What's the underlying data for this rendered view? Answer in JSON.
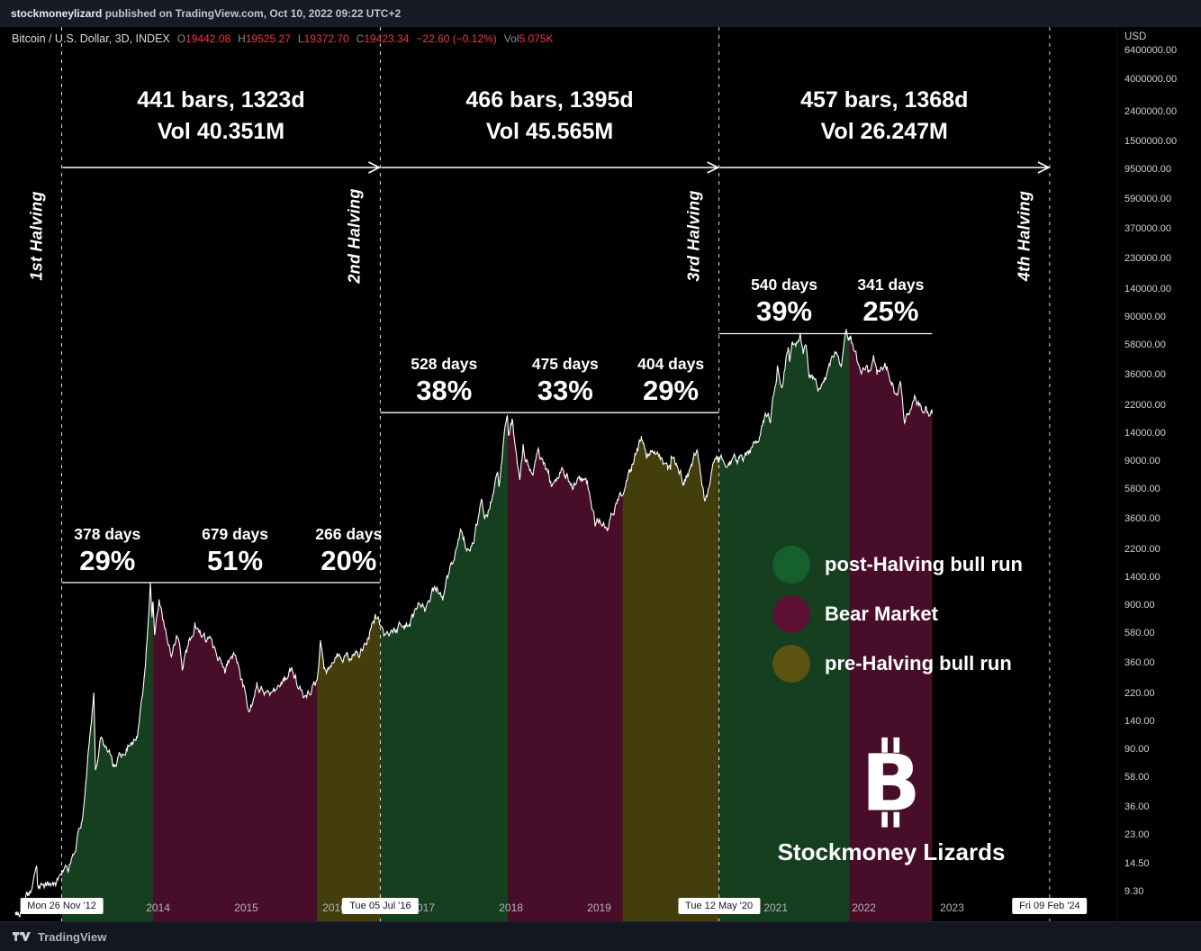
{
  "publish_bar": {
    "user": "stockmoneylizard",
    "rest": " published on TradingView.com, Oct 10, 2022 09:22 UTC+2"
  },
  "symbol_bar": {
    "title": "Bitcoin / U.S. Dollar, 3D, INDEX",
    "o_label": "O",
    "o": "19442.08",
    "h_label": "H",
    "h": "19525.27",
    "l_label": "L",
    "l": "19372.70",
    "c_label": "C",
    "c": "19423.34",
    "change": "−22.60 (−0.12%)",
    "vol_label": "Vol",
    "vol": "5.075K"
  },
  "footer": {
    "brand": "TradingView"
  },
  "price_axis": {
    "title": "USD",
    "labels": [
      "6400000.00",
      "4000000.00",
      "2400000.00",
      "1500000.00",
      "950000.00",
      "590000.00",
      "370000.00",
      "230000.00",
      "140000.00",
      "90000.00",
      "58000.00",
      "36000.00",
      "22000.00",
      "14000.00",
      "9000.00",
      "5800.00",
      "3600.00",
      "2200.00",
      "1400.00",
      "900.00",
      "580.00",
      "360.00",
      "220.00",
      "140.00",
      "90.00",
      "58.00",
      "36.00",
      "23.00",
      "14.50",
      "9.30"
    ]
  },
  "time_axis": {
    "years": [
      "2014",
      "2015",
      "2016",
      "2017",
      "2018",
      "2019",
      "2021",
      "2022",
      "2023"
    ],
    "badges": [
      "Mon 26 Nov '12",
      "Tue 05 Jul '16",
      "Tue 12 May '20",
      "Fri 09 Feb '24"
    ]
  },
  "halvings": [
    {
      "label": "1st Halving",
      "date": "2012-11-28"
    },
    {
      "label": "2nd Halving",
      "date": "2016-07-09"
    },
    {
      "label": "3rd Halving",
      "date": "2020-05-11"
    },
    {
      "label": "4th Halving",
      "date": "2024-02-09"
    }
  ],
  "cycle_spans": [
    {
      "line1": "441 bars, 1323d",
      "line2": "Vol 40.351M"
    },
    {
      "line1": "466 bars, 1395d",
      "line2": "Vol 45.565M"
    },
    {
      "line1": "457 bars, 1368d",
      "line2": "Vol 26.247M"
    }
  ],
  "legend": [
    {
      "label": "post-Halving bull run",
      "color": "#15602c",
      "icon": "green-circle-icon"
    },
    {
      "label": "Bear Market",
      "color": "#5c1134",
      "icon": "maroon-circle-icon"
    },
    {
      "label": "pre-Halving bull run",
      "color": "#5c5212",
      "icon": "olive-circle-icon"
    }
  ],
  "watermark": {
    "symbol": "B",
    "name": "Stockmoney Lizards"
  },
  "chart_data": {
    "type": "area",
    "symbol": "Bitcoin / U.S. Dollar",
    "interval": "3D",
    "exchange": "INDEX",
    "x_unit": "date",
    "y_scale": "log",
    "x_range": [
      "2012-05-20",
      "2024-02-09"
    ],
    "y_range_usd": [
      9.3,
      6400000
    ],
    "grid": false,
    "price_anchors": [
      [
        "2012-05-20",
        6.4
      ],
      [
        "2012-06-20",
        6.7
      ],
      [
        "2012-07-10",
        8.4
      ],
      [
        "2012-08-17",
        13.5
      ],
      [
        "2012-08-20",
        10.0
      ],
      [
        "2012-10-25",
        10.3
      ],
      [
        "2012-11-28",
        12.4
      ],
      [
        "2013-01-01",
        13.5
      ],
      [
        "2013-02-20",
        29
      ],
      [
        "2013-04-10",
        235
      ],
      [
        "2013-04-17",
        68
      ],
      [
        "2013-05-08",
        115
      ],
      [
        "2013-07-06",
        68
      ],
      [
        "2013-10-05",
        123
      ],
      [
        "2013-11-10",
        340
      ],
      [
        "2013-11-30",
        1230
      ],
      [
        "2013-12-07",
        710
      ],
      [
        "2013-12-11",
        980
      ],
      [
        "2013-12-18",
        540
      ],
      [
        "2014-01-05",
        930
      ],
      [
        "2014-02-25",
        440
      ],
      [
        "2014-03-25",
        585
      ],
      [
        "2014-04-11",
        360
      ],
      [
        "2014-06-02",
        650
      ],
      [
        "2014-08-18",
        460
      ],
      [
        "2014-10-05",
        325
      ],
      [
        "2014-11-12",
        420
      ],
      [
        "2015-01-14",
        172
      ],
      [
        "2015-02-14",
        255
      ],
      [
        "2015-04-25",
        225
      ],
      [
        "2015-07-12",
        310
      ],
      [
        "2015-08-24",
        205
      ],
      [
        "2015-10-21",
        270
      ],
      [
        "2015-11-04",
        480
      ],
      [
        "2015-11-20",
        320
      ],
      [
        "2016-01-15",
        365
      ],
      [
        "2016-04-20",
        430
      ],
      [
        "2016-06-18",
        760
      ],
      [
        "2016-07-09",
        655
      ],
      [
        "2016-08-02",
        520
      ],
      [
        "2016-10-28",
        680
      ],
      [
        "2016-12-31",
        965
      ],
      [
        "2017-01-11",
        780
      ],
      [
        "2017-03-03",
        1280
      ],
      [
        "2017-03-24",
        940
      ],
      [
        "2017-05-25",
        2450
      ],
      [
        "2017-06-11",
        2980
      ],
      [
        "2017-07-16",
        1930
      ],
      [
        "2017-09-01",
        4900
      ],
      [
        "2017-09-14",
        3150
      ],
      [
        "2017-11-08",
        7450
      ],
      [
        "2017-11-12",
        5900
      ],
      [
        "2017-12-17",
        19500
      ],
      [
        "2017-12-22",
        13000
      ],
      [
        "2018-01-06",
        17100
      ],
      [
        "2018-02-06",
        6250
      ],
      [
        "2018-02-20",
        11400
      ],
      [
        "2018-03-30",
        6850
      ],
      [
        "2018-04-24",
        9650
      ],
      [
        "2018-06-28",
        5850
      ],
      [
        "2018-07-25",
        8250
      ],
      [
        "2018-09-05",
        6400
      ],
      [
        "2018-11-13",
        6350
      ],
      [
        "2018-12-15",
        3230
      ],
      [
        "2019-01-10",
        3650
      ],
      [
        "2019-02-07",
        3400
      ],
      [
        "2019-04-08",
        5200
      ],
      [
        "2019-05-14",
        8000
      ],
      [
        "2019-06-26",
        13500
      ],
      [
        "2019-07-17",
        9500
      ],
      [
        "2019-08-06",
        11800
      ],
      [
        "2019-09-24",
        8400
      ],
      [
        "2019-10-23",
        7400
      ],
      [
        "2019-10-26",
        9300
      ],
      [
        "2019-12-18",
        6650
      ],
      [
        "2020-02-12",
        10350
      ],
      [
        "2020-03-13",
        4600
      ],
      [
        "2020-04-30",
        9300
      ],
      [
        "2020-05-11",
        8650
      ],
      [
        "2020-07-20",
        9200
      ],
      [
        "2020-09-05",
        10100
      ],
      [
        "2020-10-20",
        12000
      ],
      [
        "2020-11-25",
        19000
      ],
      [
        "2020-12-11",
        17800
      ],
      [
        "2021-01-08",
        41000
      ],
      [
        "2021-01-27",
        30200
      ],
      [
        "2021-02-21",
        57000
      ],
      [
        "2021-02-28",
        43700
      ],
      [
        "2021-03-13",
        61000
      ],
      [
        "2021-03-25",
        51500
      ],
      [
        "2021-04-13",
        64500
      ],
      [
        "2021-04-25",
        48900
      ],
      [
        "2021-05-08",
        58500
      ],
      [
        "2021-05-19",
        36800
      ],
      [
        "2021-06-22",
        28900
      ],
      [
        "2021-07-20",
        29500
      ],
      [
        "2021-09-06",
        52700
      ],
      [
        "2021-09-29",
        41100
      ],
      [
        "2021-10-20",
        66900
      ],
      [
        "2021-11-08",
        68500
      ],
      [
        "2021-12-04",
        49200
      ],
      [
        "2022-01-22",
        35000
      ],
      [
        "2022-02-10",
        44500
      ],
      [
        "2022-02-24",
        34300
      ],
      [
        "2022-03-29",
        47400
      ],
      [
        "2022-05-12",
        27700
      ],
      [
        "2022-05-31",
        31700
      ],
      [
        "2022-06-18",
        17800
      ],
      [
        "2022-07-30",
        23900
      ],
      [
        "2022-08-28",
        19600
      ],
      [
        "2022-09-13",
        22300
      ],
      [
        "2022-09-21",
        18800
      ],
      [
        "2022-10-10",
        19423.34
      ]
    ],
    "halving_dates": [
      "2012-11-28",
      "2016-07-09",
      "2020-05-11",
      "2024-02-09"
    ],
    "cycle_peak_lines": [
      {
        "price": 1310,
        "from": "2012-11-28",
        "to": "2016-07-09"
      },
      {
        "price": 19800,
        "from": "2016-07-09",
        "to": "2020-05-11"
      },
      {
        "price": 70000,
        "from": "2020-05-11",
        "to": "2022-10-10"
      }
    ],
    "segments": [
      {
        "cycle": 1,
        "kind": "post-halving-bull",
        "days": "378 days",
        "pct": "29%",
        "from": "2012-11-28",
        "to": "2013-12-11"
      },
      {
        "cycle": 1,
        "kind": "bear",
        "days": "679 days",
        "pct": "51%",
        "from": "2013-12-11",
        "to": "2015-10-21"
      },
      {
        "cycle": 1,
        "kind": "pre-halving-bull",
        "days": "266 days",
        "pct": "20%",
        "from": "2015-10-21",
        "to": "2016-07-09"
      },
      {
        "cycle": 2,
        "kind": "post-halving-bull",
        "days": "528 days",
        "pct": "38%",
        "from": "2016-07-09",
        "to": "2017-12-19"
      },
      {
        "cycle": 2,
        "kind": "bear",
        "days": "475 days",
        "pct": "33%",
        "from": "2017-12-19",
        "to": "2019-04-08"
      },
      {
        "cycle": 2,
        "kind": "pre-halving-bull",
        "days": "404 days",
        "pct": "29%",
        "from": "2019-04-08",
        "to": "2020-05-11"
      },
      {
        "cycle": 3,
        "kind": "post-halving-bull",
        "days": "540 days",
        "pct": "39%",
        "from": "2020-05-11",
        "to": "2021-11-02"
      },
      {
        "cycle": 3,
        "kind": "bear",
        "days": "341 days",
        "pct": "25%",
        "from": "2021-11-02",
        "to": "2022-10-10"
      }
    ],
    "colors": {
      "post-halving-bull": "#153f1e",
      "bear": "#480d28",
      "pre-halving-bull": "#443e0d",
      "line": "#ffffff"
    }
  }
}
